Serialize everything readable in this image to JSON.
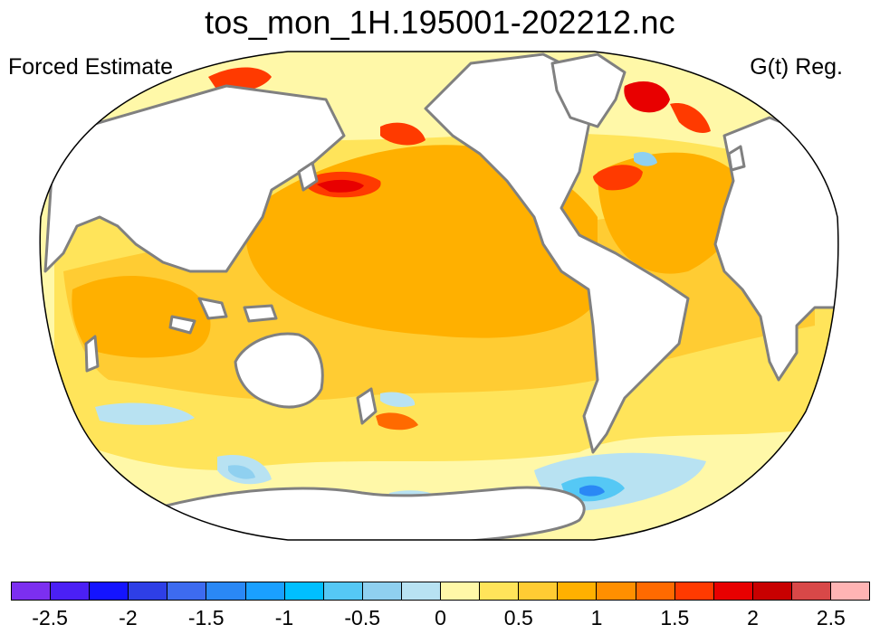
{
  "title": "tos_mon_1H.195001-202212.nc",
  "left_label": "Forced Estimate",
  "right_label": "G(t) Reg.",
  "colors": {
    "land": "#ffffff",
    "coastline": "#808080",
    "outline": "#000000"
  },
  "colorbar": {
    "colors": [
      "#7c2ff0",
      "#4b20f5",
      "#1414ff",
      "#2e3fe6",
      "#3d6bf0",
      "#2a88f5",
      "#1aa0ff",
      "#00bfff",
      "#55c8f5",
      "#8fd0f0",
      "#b8e2f2",
      "#fff8a8",
      "#ffe45a",
      "#ffcc33",
      "#ffb000",
      "#ff8f00",
      "#ff6a00",
      "#ff3a00",
      "#e80000",
      "#c80000",
      "#d84848",
      "#ffb4b4"
    ],
    "tick_labels": [
      "-2.5",
      "-2",
      "-1.5",
      "-1",
      "-0.5",
      "0",
      "0.5",
      "1",
      "1.5",
      "2",
      "2.5"
    ]
  }
}
